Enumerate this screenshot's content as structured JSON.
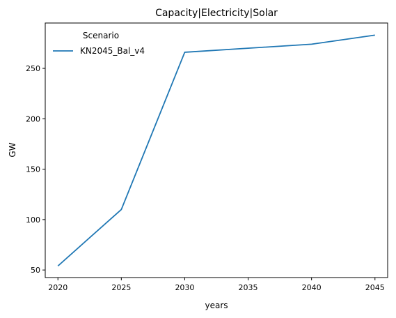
{
  "chart_data": {
    "type": "line",
    "title": "Capacity|Electricity|Solar",
    "xlabel": "years",
    "ylabel": "GW",
    "x": [
      2020,
      2025,
      2030,
      2035,
      2040,
      2045
    ],
    "series": [
      {
        "name": "KN2045_Bal_v4",
        "color": "#1f77b4",
        "values": [
          54,
          110,
          266,
          270,
          274,
          283
        ]
      }
    ],
    "xticks": [
      2020,
      2025,
      2030,
      2035,
      2040,
      2045
    ],
    "yticks": [
      50,
      100,
      150,
      200,
      250
    ],
    "xlim": [
      2019,
      2046
    ],
    "ylim": [
      42.5,
      295
    ],
    "legend": {
      "title": "Scenario",
      "placement": "top-left"
    },
    "grid": false
  }
}
